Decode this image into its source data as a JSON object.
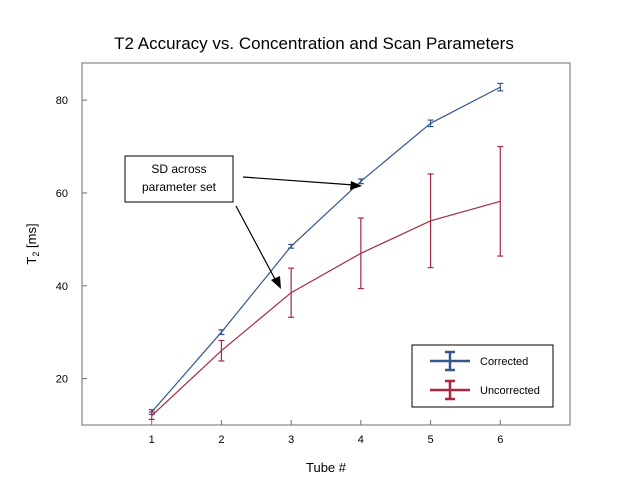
{
  "chart_data": {
    "type": "line",
    "title": "T2 Accuracy vs. Concentration and Scan Parameters",
    "xlabel": "Tube #",
    "ylabel_main": "T",
    "ylabel_sub": "2",
    "ylabel_unit": " [ms]",
    "x": [
      1,
      2,
      3,
      4,
      5,
      6
    ],
    "xlim": [
      0,
      7
    ],
    "ylim": [
      10,
      88
    ],
    "xticks": [
      "1",
      "2",
      "3",
      "4",
      "5",
      "6"
    ],
    "yticks": [
      20,
      40,
      60,
      80
    ],
    "grid": false,
    "legend_position": "bottom-right",
    "series": [
      {
        "name": "Corrected",
        "color": "#34568b",
        "values": [
          12.8,
          30.0,
          48.5,
          62.5,
          75.0,
          82.8
        ],
        "error": [
          0.5,
          0.5,
          0.4,
          0.5,
          0.7,
          0.8
        ]
      },
      {
        "name": "Uncorrected",
        "color": "#a8293f",
        "values": [
          12.0,
          26.0,
          38.5,
          47.0,
          54.0,
          58.2
        ],
        "error": [
          0.8,
          2.2,
          5.3,
          7.6,
          10.1,
          11.8
        ]
      }
    ],
    "annotation": {
      "lines": [
        "SD across",
        "parameter set"
      ]
    }
  }
}
